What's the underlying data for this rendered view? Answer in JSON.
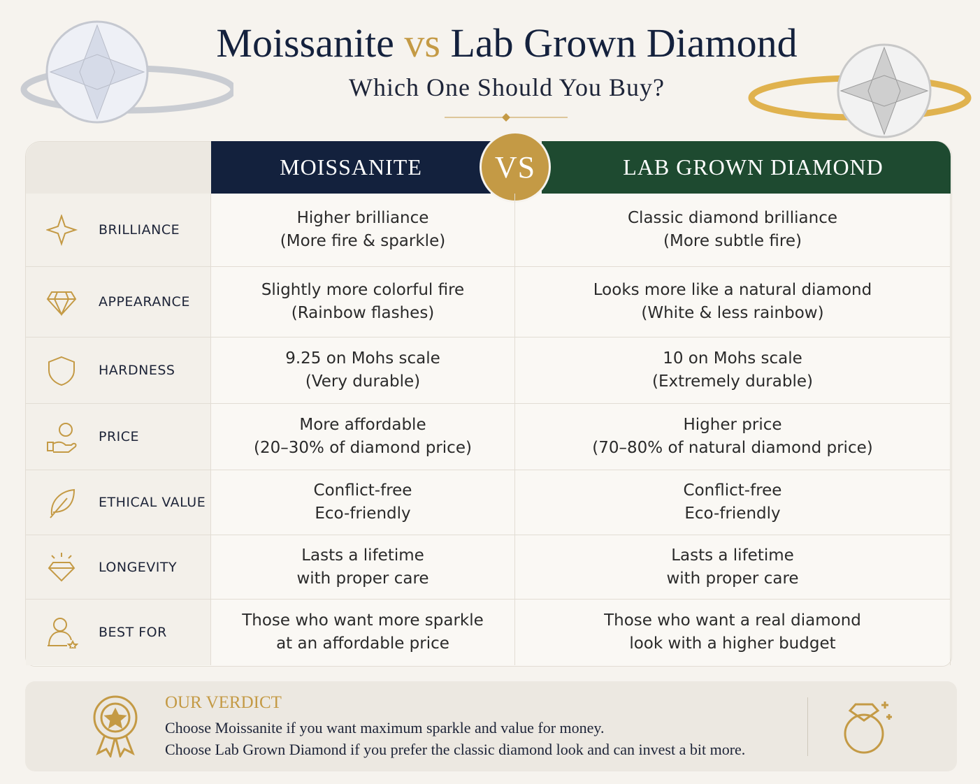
{
  "header": {
    "title": {
      "left": "Moissanite",
      "vs": "vs",
      "right": "Lab Grown Diamond"
    },
    "subtitle": "Which One Should You Buy?"
  },
  "table": {
    "columns": {
      "moissanite": "MOISSANITE",
      "vs": "VS",
      "lab": "LAB GROWN DIAMOND"
    },
    "rows": [
      {
        "label": "BRILLIANCE",
        "moissanite": [
          "Higher brilliance",
          "(More fire & sparkle)"
        ],
        "lab": [
          "Classic diamond brilliance",
          "(More subtle fire)"
        ]
      },
      {
        "label": "APPEARANCE",
        "moissanite": [
          "Slightly more colorful fire",
          "(Rainbow flashes)"
        ],
        "lab": [
          "Looks more like a natural diamond",
          "(White & less rainbow)"
        ]
      },
      {
        "label": "HARDNESS",
        "moissanite": [
          "9.25 on Mohs scale",
          "(Very durable)"
        ],
        "lab": [
          "10 on Mohs scale",
          "(Extremely durable)"
        ]
      },
      {
        "label": "PRICE",
        "moissanite": [
          "More affordable",
          "(20–30% of diamond price)"
        ],
        "lab": [
          "Higher price",
          "(70–80% of natural diamond price)"
        ]
      },
      {
        "label": "ETHICAL VALUE",
        "moissanite": [
          "Conflict-free",
          "Eco-friendly"
        ],
        "lab": [
          "Conflict-free",
          "Eco-friendly"
        ]
      },
      {
        "label": "LONGEVITY",
        "moissanite": [
          "Lasts a lifetime",
          "with proper care"
        ],
        "lab": [
          "Lasts a lifetime",
          "with proper care"
        ]
      },
      {
        "label": "BEST FOR",
        "moissanite": [
          "Those who want more sparkle",
          "at an affordable price"
        ],
        "lab": [
          "Those who want a real diamond",
          "look with a higher budget"
        ]
      }
    ]
  },
  "verdict": {
    "heading": "OUR VERDICT",
    "lines": [
      "Choose Moissanite if you want maximum sparkle and value for money.",
      "Choose Lab Grown Diamond if you prefer the classic diamond look and can invest a bit more."
    ]
  }
}
